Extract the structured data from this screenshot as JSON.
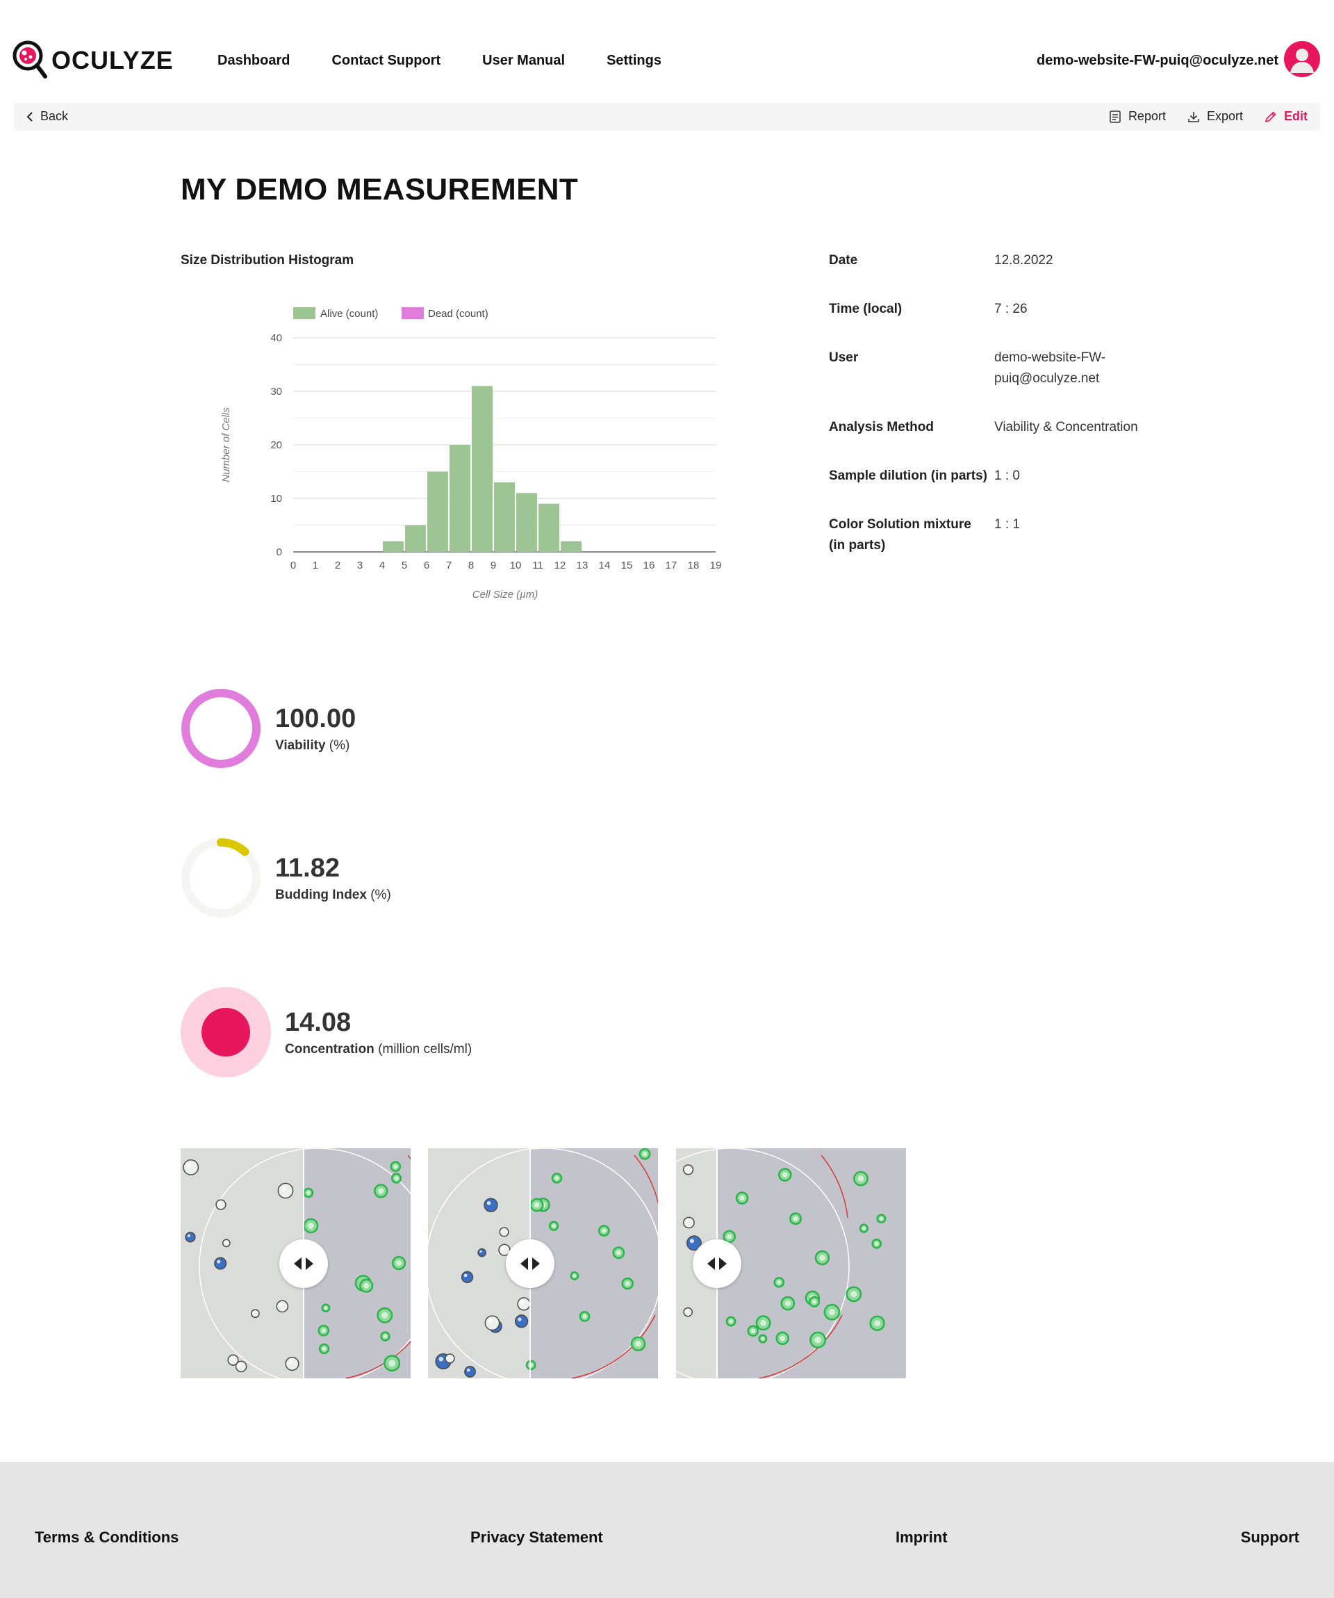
{
  "header": {
    "logo_text": "OCULYZE",
    "nav": [
      "Dashboard",
      "Contact Support",
      "User Manual",
      "Settings"
    ],
    "user_email": "demo-website-FW-puiq@oculyze.net"
  },
  "toolbar": {
    "back_label": "Back",
    "report_label": "Report",
    "export_label": "Export",
    "edit_label": "Edit"
  },
  "page_title": "MY DEMO MEASUREMENT",
  "histogram": {
    "title": "Size Distribution Histogram",
    "legend": [
      "Alive (count)",
      "Dead (count)"
    ]
  },
  "chart_data": {
    "type": "bar",
    "categories": [
      "0",
      "1",
      "2",
      "3",
      "4",
      "5",
      "6",
      "7",
      "8",
      "9",
      "10",
      "11",
      "12",
      "13",
      "14",
      "15",
      "16",
      "17",
      "18",
      "19"
    ],
    "series": [
      {
        "name": "Alive (count)",
        "color": "#9dc594",
        "values": [
          0,
          0,
          0,
          0,
          0,
          2,
          5,
          15,
          20,
          31,
          13,
          11,
          9,
          2,
          0,
          0,
          0,
          0,
          0,
          0
        ]
      },
      {
        "name": "Dead (count)",
        "color": "#e07ddc",
        "values": [
          0,
          0,
          0,
          0,
          0,
          0,
          0,
          0,
          0,
          0,
          0,
          0,
          0,
          0,
          0,
          0,
          0,
          0,
          0,
          0
        ]
      }
    ],
    "xlabel": "Cell Size (µm)",
    "ylabel": "Number of Cells",
    "ylim": [
      0,
      40
    ],
    "yticks": [
      0,
      10,
      20,
      30,
      40
    ],
    "grid": true,
    "legend_position": "top-left"
  },
  "info": [
    {
      "key": "Date",
      "value": "12.8.2022"
    },
    {
      "key": "Time (local)",
      "value": "7 : 26"
    },
    {
      "key": "User",
      "value": "demo-website-FW-puiq@oculyze.net"
    },
    {
      "key": "Analysis Method",
      "value": "Viability & Concentration"
    },
    {
      "key": "Sample dilution (in parts)",
      "value": "1 : 0"
    },
    {
      "key": "Color Solution mixture (in parts)",
      "value": "1 : 1"
    }
  ],
  "metrics": {
    "viability": {
      "value": "100.00",
      "label": "Viability",
      "unit": "(%)",
      "fraction": 1.0,
      "color": "#e07ddc"
    },
    "budding": {
      "value": "11.82",
      "label": "Budding Index",
      "unit": "(%)",
      "fraction": 0.1182,
      "color": "#d9c800"
    },
    "concentration": {
      "value": "14.08",
      "label": "Concentration",
      "unit": "(million cells/ml)",
      "color": "#e8175d",
      "ring_color": "#fcd0de"
    }
  },
  "images": {
    "count": 3,
    "cell_colors": {
      "green": "#2bb34a",
      "blue": "#3a6fc4",
      "outline": "#d43a3a"
    }
  },
  "footer": {
    "links": [
      "Terms & Conditions",
      "Privacy Statement",
      "Imprint",
      "Support"
    ]
  }
}
